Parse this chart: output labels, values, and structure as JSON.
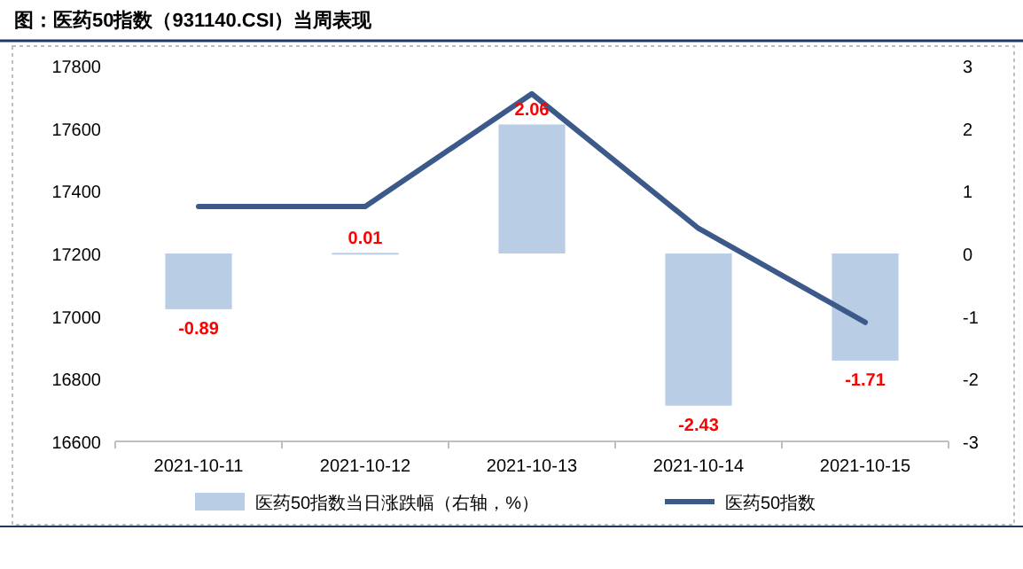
{
  "chart_data": {
    "type": "bar",
    "title": "图：医药50指数（931140.CSI）当周表现",
    "categories": [
      "2021-10-11",
      "2021-10-12",
      "2021-10-13",
      "2021-10-14",
      "2021-10-15"
    ],
    "series": [
      {
        "name": "医药50指数当日涨跌幅（右轴，%）",
        "axis": "y2",
        "color": "#b9cde5",
        "values": [
          -0.89,
          0.01,
          2.06,
          -2.43,
          -1.71
        ],
        "value_labels": [
          "-0.89",
          "0.01",
          "2.06",
          "-2.43",
          "-1.71"
        ]
      },
      {
        "name": "医药50指数",
        "type": "line",
        "color": "#3b5a8a",
        "values": [
          17350,
          17350,
          17710,
          17280,
          16980
        ]
      }
    ],
    "ylim": [
      16600,
      17800
    ],
    "yticks": [
      16600,
      16800,
      17000,
      17200,
      17400,
      17600,
      17800
    ],
    "y2lim": [
      -3,
      3
    ],
    "y2ticks": [
      -3,
      -2,
      -1,
      0,
      1,
      2,
      3
    ],
    "legend": "bottom",
    "grid": false
  }
}
